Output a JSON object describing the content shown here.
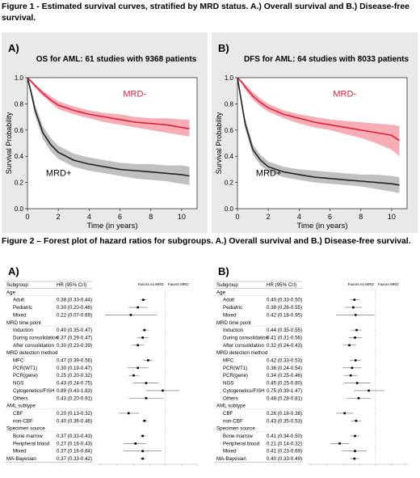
{
  "captions": {
    "fig1": "Figure 1 - Estimated survival curves, stratified by MRD status. A.) Overall survival and B.) Disease-free survival.",
    "fig2": "Figure 2 – Forest plot of hazard ratios for subgroups. A.) Overall survival and B.) Disease-free survival."
  },
  "km": [
    {
      "panel": "A)",
      "title": "OS for AML: 61 studies with 9368 patients",
      "ylabel": "Survival Probability",
      "xlabel": "Time (in years)",
      "yticks": [
        "0.0",
        "0.2",
        "0.4",
        "0.6",
        "0.8",
        "1.0"
      ],
      "xticks": [
        "0",
        "2",
        "4",
        "6",
        "8",
        "10"
      ],
      "labels": {
        "minus": "MRD-",
        "plus": "MRD+"
      },
      "colors": {
        "minus": "#e0213b",
        "minus_band": "#f5a4ae",
        "plus": "#222222",
        "plus_band": "#b9b9b9"
      }
    },
    {
      "panel": "B)",
      "title": "DFS for AML: 64 studies with 8033 patients",
      "ylabel": "Survival Probability",
      "xlabel": "Time (in years)",
      "yticks": [
        "0.0",
        "0.2",
        "0.4",
        "0.6",
        "0.8",
        "1.0"
      ],
      "xticks": [
        "0",
        "2",
        "4",
        "6",
        "8",
        "10"
      ],
      "labels": {
        "minus": "MRD-",
        "plus": "MRD+"
      },
      "colors": {
        "minus": "#e0213b",
        "minus_band": "#f5a4ae",
        "plus": "#222222",
        "plus_band": "#b9b9b9"
      }
    }
  ],
  "forest": [
    {
      "panel": "A)",
      "col_subgroup": "Subgroup",
      "col_hr": "HR (95% CrI)",
      "favors_left": "Favors no MRD",
      "favors_right": "Favors MRD",
      "rows": [
        {
          "label": "Age",
          "header": true
        },
        {
          "label": "Adult",
          "hr": "0.38 (0.33-0.44)"
        },
        {
          "label": "Pediatric",
          "hr": "0.30 (0.20-0.46)"
        },
        {
          "label": "Mixed",
          "hr": "0.22 (0.07-0.69)"
        },
        {
          "label": "MRD time point",
          "header": true
        },
        {
          "label": "Induction",
          "hr": "0.40 (0.35-0.47)"
        },
        {
          "label": "During consolidation",
          "hr": "0.37 (0.29-0.47)"
        },
        {
          "label": "After consolidation",
          "hr": "0.30 (0.23-0.39)"
        },
        {
          "label": "MRD detection method",
          "header": true
        },
        {
          "label": "MFC",
          "hr": "0.47 (0.39-0.56)"
        },
        {
          "label": "PCR(WT1)",
          "hr": "0.30 (0.19-0.47)"
        },
        {
          "label": "PCR(gene)",
          "hr": "0.25 (0.20-0.32)"
        },
        {
          "label": "NGS",
          "hr": "0.43 (0.24-0.75)"
        },
        {
          "label": "Cytogenetics/FISH",
          "hr": "0.89 (0.43-1.83)"
        },
        {
          "label": "Others",
          "hr": "0.43 (0.20-0.91)"
        },
        {
          "label": "AML subtype",
          "header": true
        },
        {
          "label": "CBF",
          "hr": "0.20 (0.13-0.32)"
        },
        {
          "label": "non-CBF",
          "hr": "0.40 (0.36-0.46)"
        },
        {
          "label": "Specimen source",
          "header": true
        },
        {
          "label": "Bone marrow",
          "hr": "0.37 (0.33-0.43)"
        },
        {
          "label": "Peripheral blood",
          "hr": "0.27 (0.16-0.43)"
        },
        {
          "label": "Mixed",
          "hr": "0.37 (0.16-0.84)"
        },
        {
          "label": "MA-Bayesian",
          "hr": "0.37 (0.33-0.42)",
          "summary": true
        }
      ]
    },
    {
      "panel": "B)",
      "col_subgroup": "Subgroup",
      "col_hr": "HR (95% CrI)",
      "favors_left": "Favors no MRD",
      "favors_right": "Favors MRD",
      "rows": [
        {
          "label": "Age",
          "header": true
        },
        {
          "label": "Adult",
          "hr": "0.40 (0.33-0.50)"
        },
        {
          "label": "Pediatric",
          "hr": "0.38 (0.26-0.55)"
        },
        {
          "label": "Mixed",
          "hr": "0.42 (0.18-0.95)"
        },
        {
          "label": "MRD time point",
          "header": true
        },
        {
          "label": "Induction",
          "hr": "0.44 (0.35-0.55)"
        },
        {
          "label": "During consolidation",
          "hr": "0.41 (0.31-0.56)"
        },
        {
          "label": "After consolidation",
          "hr": "0.32 (0.24-0.43)"
        },
        {
          "label": "MRD detection method",
          "header": true
        },
        {
          "label": "MFC",
          "hr": "0.42 (0.33-0.53)"
        },
        {
          "label": "PCR(WT1)",
          "hr": "0.36 (0.24-0.54)"
        },
        {
          "label": "PCR(gene)",
          "hr": "0.34 (0.25-0.46)"
        },
        {
          "label": "NGS",
          "hr": "0.45 (0.25-0.80)"
        },
        {
          "label": "Cytogenetics/FISH",
          "hr": "0.75 (0.39-1.47)"
        },
        {
          "label": "Others",
          "hr": "0.48 (0.28-0.81)"
        },
        {
          "label": "AML subtype",
          "header": true
        },
        {
          "label": "CBF",
          "hr": "0.26 (0.18-0.38)"
        },
        {
          "label": "non-CBF",
          "hr": "0.43 (0.35-0.53)"
        },
        {
          "label": "Specimen source",
          "header": true
        },
        {
          "label": "Bone marrow",
          "hr": "0.41 (0.34-0.50)"
        },
        {
          "label": "Peripheral blood",
          "hr": "0.21 (0.14-0.32)"
        },
        {
          "label": "Mixed",
          "hr": "0.41 (0.23-0.69)"
        },
        {
          "label": "MA-Bayesian",
          "hr": "0.40 (0.33-0.49)",
          "summary": true
        }
      ]
    }
  ],
  "chart_data": [
    {
      "type": "line",
      "title": "OS for AML: 61 studies with 9368 patients",
      "xlabel": "Time (in years)",
      "ylabel": "Survival Probability",
      "xlim": [
        0,
        11
      ],
      "ylim": [
        0,
        1
      ],
      "series": [
        {
          "name": "MRD-",
          "x": [
            0,
            0.25,
            0.5,
            1,
            1.5,
            2,
            3,
            4,
            5,
            6,
            7,
            8,
            9,
            10,
            10.5
          ],
          "y": [
            1.0,
            0.97,
            0.94,
            0.88,
            0.83,
            0.79,
            0.75,
            0.72,
            0.7,
            0.68,
            0.66,
            0.65,
            0.64,
            0.62,
            0.61
          ],
          "lower": [
            1.0,
            0.96,
            0.92,
            0.86,
            0.81,
            0.76,
            0.72,
            0.69,
            0.66,
            0.64,
            0.62,
            0.6,
            0.58,
            0.56,
            0.55
          ],
          "upper": [
            1.0,
            0.98,
            0.95,
            0.9,
            0.86,
            0.82,
            0.78,
            0.75,
            0.73,
            0.72,
            0.7,
            0.69,
            0.69,
            0.68,
            0.68
          ]
        },
        {
          "name": "MRD+",
          "x": [
            0,
            0.25,
            0.5,
            1,
            1.5,
            2,
            3,
            4,
            5,
            6,
            7,
            8,
            9,
            10,
            10.5
          ],
          "y": [
            1.0,
            0.88,
            0.75,
            0.58,
            0.49,
            0.43,
            0.37,
            0.34,
            0.32,
            0.3,
            0.29,
            0.28,
            0.27,
            0.26,
            0.25
          ],
          "lower": [
            1.0,
            0.85,
            0.71,
            0.53,
            0.44,
            0.38,
            0.32,
            0.29,
            0.27,
            0.25,
            0.23,
            0.22,
            0.21,
            0.19,
            0.18
          ],
          "upper": [
            1.0,
            0.91,
            0.79,
            0.63,
            0.54,
            0.48,
            0.42,
            0.39,
            0.37,
            0.35,
            0.34,
            0.34,
            0.33,
            0.33,
            0.32
          ]
        }
      ]
    },
    {
      "type": "line",
      "title": "DFS for AML: 64 studies with 8033 patients",
      "xlabel": "Time (in years)",
      "ylabel": "Survival Probability",
      "xlim": [
        0,
        11
      ],
      "ylim": [
        0,
        1
      ],
      "series": [
        {
          "name": "MRD-",
          "x": [
            0,
            0.25,
            0.5,
            1,
            1.5,
            2,
            3,
            4,
            5,
            6,
            7,
            8,
            9,
            10,
            10.5
          ],
          "y": [
            1.0,
            0.97,
            0.93,
            0.86,
            0.81,
            0.77,
            0.72,
            0.69,
            0.66,
            0.64,
            0.62,
            0.6,
            0.58,
            0.56,
            0.52
          ],
          "lower": [
            1.0,
            0.96,
            0.91,
            0.83,
            0.78,
            0.74,
            0.69,
            0.65,
            0.62,
            0.6,
            0.57,
            0.54,
            0.5,
            0.45,
            0.4
          ],
          "upper": [
            1.0,
            0.98,
            0.95,
            0.89,
            0.84,
            0.8,
            0.75,
            0.72,
            0.7,
            0.68,
            0.67,
            0.66,
            0.65,
            0.64,
            0.63
          ]
        },
        {
          "name": "MRD+",
          "x": [
            0,
            0.25,
            0.5,
            1,
            1.5,
            2,
            3,
            4,
            5,
            6,
            7,
            8,
            9,
            10,
            10.5
          ],
          "y": [
            1.0,
            0.82,
            0.65,
            0.45,
            0.37,
            0.32,
            0.28,
            0.26,
            0.24,
            0.23,
            0.22,
            0.21,
            0.2,
            0.19,
            0.18
          ],
          "lower": [
            1.0,
            0.79,
            0.61,
            0.41,
            0.33,
            0.28,
            0.24,
            0.22,
            0.2,
            0.19,
            0.18,
            0.17,
            0.15,
            0.13,
            0.12
          ],
          "upper": [
            1.0,
            0.85,
            0.69,
            0.49,
            0.41,
            0.36,
            0.32,
            0.3,
            0.29,
            0.28,
            0.27,
            0.26,
            0.26,
            0.25,
            0.24
          ]
        }
      ]
    },
    {
      "type": "scatter",
      "title": "",
      "xlabel": "HR (95% CrI)",
      "categories": [
        "Adult",
        "Pediatric",
        "Mixed",
        "Induction",
        "During consolidation",
        "After consolidation",
        "MFC",
        "PCR(WT1)",
        "PCR(gene)",
        "NGS",
        "Cytogenetics/FISH",
        "Others",
        "CBF",
        "non-CBF",
        "Bone marrow",
        "Peripheral blood",
        "Mixed",
        "MA-Bayesian"
      ],
      "values": [
        0.38,
        0.3,
        0.22,
        0.4,
        0.37,
        0.3,
        0.47,
        0.3,
        0.25,
        0.43,
        0.89,
        0.43,
        0.2,
        0.4,
        0.37,
        0.27,
        0.37,
        0.37
      ],
      "lower": [
        0.33,
        0.2,
        0.07,
        0.35,
        0.29,
        0.23,
        0.39,
        0.19,
        0.2,
        0.24,
        0.43,
        0.2,
        0.13,
        0.36,
        0.33,
        0.16,
        0.16,
        0.33
      ],
      "upper": [
        0.44,
        0.46,
        0.69,
        0.47,
        0.47,
        0.39,
        0.56,
        0.47,
        0.32,
        0.75,
        1.83,
        0.91,
        0.32,
        0.46,
        0.43,
        0.43,
        0.84,
        0.42
      ]
    },
    {
      "type": "scatter",
      "title": "",
      "xlabel": "HR (95% CrI)",
      "categories": [
        "Adult",
        "Pediatric",
        "Mixed",
        "Induction",
        "During consolidation",
        "After consolidation",
        "MFC",
        "PCR(WT1)",
        "PCR(gene)",
        "NGS",
        "Cytogenetics/FISH",
        "Others",
        "CBF",
        "non-CBF",
        "Bone marrow",
        "Peripheral blood",
        "Mixed",
        "MA-Bayesian"
      ],
      "values": [
        0.4,
        0.38,
        0.42,
        0.44,
        0.41,
        0.32,
        0.42,
        0.36,
        0.34,
        0.45,
        0.75,
        0.48,
        0.26,
        0.43,
        0.41,
        0.21,
        0.41,
        0.4
      ],
      "lower": [
        0.33,
        0.26,
        0.18,
        0.35,
        0.31,
        0.24,
        0.33,
        0.24,
        0.25,
        0.25,
        0.39,
        0.28,
        0.18,
        0.35,
        0.34,
        0.14,
        0.23,
        0.33
      ],
      "upper": [
        0.5,
        0.55,
        0.95,
        0.55,
        0.56,
        0.43,
        0.53,
        0.54,
        0.46,
        0.8,
        1.47,
        0.81,
        0.38,
        0.53,
        0.5,
        0.32,
        0.69,
        0.49
      ]
    }
  ]
}
